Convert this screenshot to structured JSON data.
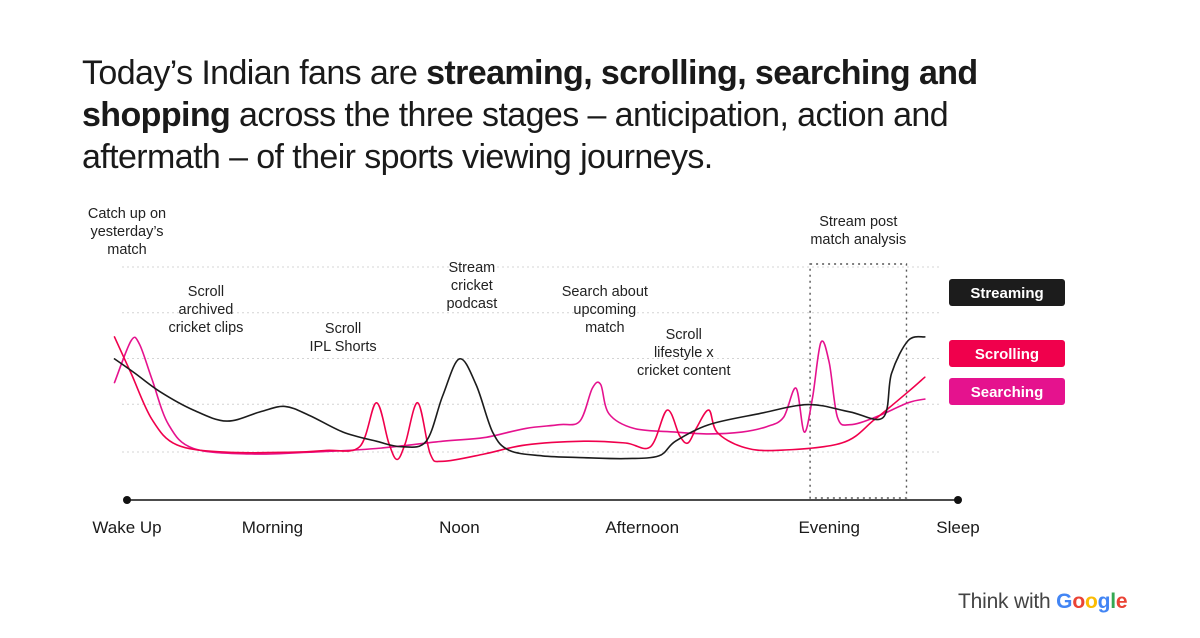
{
  "headline": {
    "part1": "Today’s Indian fans are ",
    "bold1": "streaming, scrolling, searching and shopping",
    "part2": " across the three stages – anticipation, action and aftermath –  of their sports viewing journeys."
  },
  "chart_data": {
    "type": "line",
    "x_axis": {
      "range": [
        0,
        100
      ],
      "ticks": [
        {
          "x": 0,
          "label": "Wake Up"
        },
        {
          "x": 17.5,
          "label": "Morning"
        },
        {
          "x": 40,
          "label": "Noon"
        },
        {
          "x": 62,
          "label": "Afternoon"
        },
        {
          "x": 84.5,
          "label": "Evening"
        },
        {
          "x": 100,
          "label": "Sleep"
        }
      ]
    },
    "y_axis": {
      "range": [
        0,
        100
      ],
      "ticks_shown": false
    },
    "grid": true,
    "legend_position": "right",
    "series": [
      {
        "name": "Streaming",
        "color": "#1c1c1c",
        "points": [
          [
            -1.5,
            58
          ],
          [
            1,
            50
          ],
          [
            4,
            40
          ],
          [
            8,
            30
          ],
          [
            12,
            24
          ],
          [
            16,
            29
          ],
          [
            19,
            32
          ],
          [
            22,
            27
          ],
          [
            26,
            18
          ],
          [
            30,
            13
          ],
          [
            33,
            10
          ],
          [
            36,
            13
          ],
          [
            38,
            38
          ],
          [
            40,
            58
          ],
          [
            42,
            44
          ],
          [
            44,
            18
          ],
          [
            46,
            8
          ],
          [
            50,
            5
          ],
          [
            55,
            4
          ],
          [
            60,
            3.5
          ],
          [
            64,
            5
          ],
          [
            66,
            13
          ],
          [
            70,
            22
          ],
          [
            76,
            28
          ],
          [
            82,
            33
          ],
          [
            87,
            29
          ],
          [
            91,
            26
          ],
          [
            92,
            50
          ],
          [
            94,
            68
          ],
          [
            96,
            70
          ]
        ]
      },
      {
        "name": "Scrolling",
        "color": "#f0004c",
        "points": [
          [
            -1.5,
            70
          ],
          [
            0.5,
            50
          ],
          [
            3,
            25
          ],
          [
            6,
            11
          ],
          [
            12,
            7
          ],
          [
            20,
            7
          ],
          [
            24,
            8
          ],
          [
            28,
            10
          ],
          [
            30,
            34
          ],
          [
            31.5,
            12
          ],
          [
            32.5,
            3
          ],
          [
            33.5,
            12
          ],
          [
            35,
            34
          ],
          [
            36.5,
            6
          ],
          [
            38,
            2
          ],
          [
            43,
            6
          ],
          [
            48,
            11
          ],
          [
            55,
            13
          ],
          [
            60,
            12
          ],
          [
            63,
            10
          ],
          [
            65,
            30
          ],
          [
            66.5,
            16
          ],
          [
            67.5,
            12
          ],
          [
            68.5,
            20
          ],
          [
            70,
            30
          ],
          [
            71,
            18
          ],
          [
            74,
            10
          ],
          [
            78,
            8
          ],
          [
            86,
            12
          ],
          [
            90,
            25
          ],
          [
            94,
            40
          ],
          [
            96,
            48
          ]
        ]
      },
      {
        "name": "Searching",
        "color": "#e5128e",
        "points": [
          [
            -1.5,
            45
          ],
          [
            0.5,
            68
          ],
          [
            1.5,
            66
          ],
          [
            3,
            47
          ],
          [
            5,
            22
          ],
          [
            8,
            9
          ],
          [
            15,
            6
          ],
          [
            22,
            7
          ],
          [
            30,
            9
          ],
          [
            38,
            13
          ],
          [
            43,
            15
          ],
          [
            48,
            20
          ],
          [
            52,
            22
          ],
          [
            54.5,
            24
          ],
          [
            56,
            42
          ],
          [
            57,
            44
          ],
          [
            58,
            28
          ],
          [
            61,
            20
          ],
          [
            66,
            18
          ],
          [
            70,
            17
          ],
          [
            74,
            18
          ],
          [
            77,
            21
          ],
          [
            79,
            26
          ],
          [
            80.5,
            42
          ],
          [
            81.5,
            18
          ],
          [
            82.5,
            37
          ],
          [
            83.5,
            67
          ],
          [
            84.5,
            56
          ],
          [
            85.5,
            26
          ],
          [
            87,
            22
          ],
          [
            90,
            26
          ],
          [
            94,
            34
          ],
          [
            96,
            36
          ]
        ]
      }
    ],
    "annotations": [
      {
        "text": [
          "Catch up on",
          "yesterday’s",
          "match"
        ],
        "x": 0
      },
      {
        "text": [
          "Scroll",
          "archived",
          "cricket clips"
        ],
        "x": 9.5
      },
      {
        "text": [
          "Scroll",
          "IPL Shorts"
        ],
        "x": 26
      },
      {
        "text": [
          "Stream",
          "cricket",
          "podcast"
        ],
        "x": 41.5
      },
      {
        "text": [
          "Search about",
          "upcoming",
          "match"
        ],
        "x": 57.5
      },
      {
        "text": [
          "Scroll",
          "lifestyle x",
          "cricket content"
        ],
        "x": 67
      },
      {
        "text": [
          "Stream post",
          "match analysis"
        ],
        "x": 88
      }
    ],
    "highlight_box": {
      "x_range": [
        82.2,
        93.8
      ],
      "style": "dotted"
    }
  },
  "brand": {
    "think_with": "Think with ",
    "google": "Google"
  },
  "colors": {
    "streaming": "#1c1c1c",
    "scrolling": "#f0004c",
    "searching": "#e5128e",
    "g_blue": "#4285f4",
    "g_red": "#ea4335",
    "g_yellow": "#fbbc05",
    "g_green": "#34a853"
  }
}
